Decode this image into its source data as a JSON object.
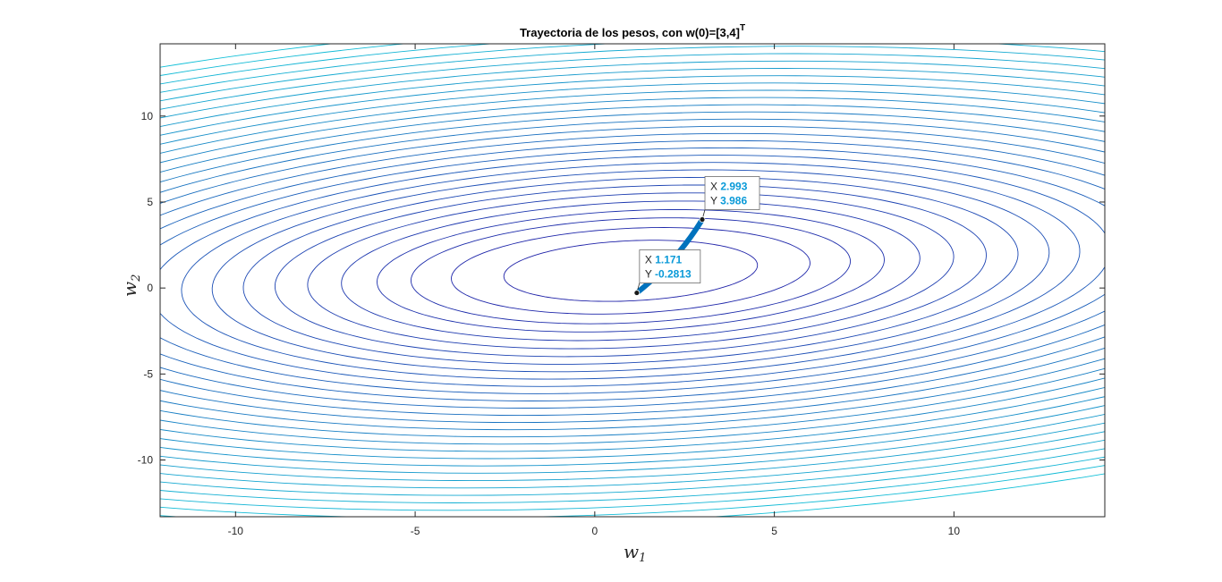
{
  "chart_data": {
    "type": "contour",
    "title": "Trayectoria de los pesos, con w(0)=[3,4]",
    "title_superscript": "T",
    "xlabel": "w",
    "xlabel_subscript": "1",
    "ylabel": "w",
    "ylabel_subscript": "2",
    "xlim": [
      -12.1,
      14.2
    ],
    "ylim": [
      -13.3,
      14.2
    ],
    "xticks": [
      -10,
      -5,
      0,
      5,
      10
    ],
    "yticks": [
      -10,
      -5,
      0,
      5,
      10
    ],
    "xtick_labels": [
      "-10",
      "-5",
      "0",
      "5",
      "10"
    ],
    "ytick_labels": [
      "-10",
      "-5",
      "0",
      "5",
      "10"
    ],
    "contour_center": [
      1.0,
      1.0
    ],
    "contour_levels": 30,
    "trajectory": {
      "start": [
        2.993,
        3.986
      ],
      "end": [
        1.171,
        -0.2813
      ],
      "color": "#0072bd"
    },
    "datatips": [
      {
        "x_label": "X",
        "x_value": "2.993",
        "y_label": "Y",
        "y_value": "3.986",
        "x": 2.993,
        "y": 3.986
      },
      {
        "x_label": "X",
        "x_value": "1.171",
        "y_label": "Y",
        "y_value": "-0.2813",
        "x": 1.171,
        "y": -0.2813
      }
    ],
    "grid": false,
    "colors": {
      "contour_low": "#1f22a8",
      "contour_high": "#13c0d8",
      "datatip_value": "#0a9ad8"
    }
  }
}
